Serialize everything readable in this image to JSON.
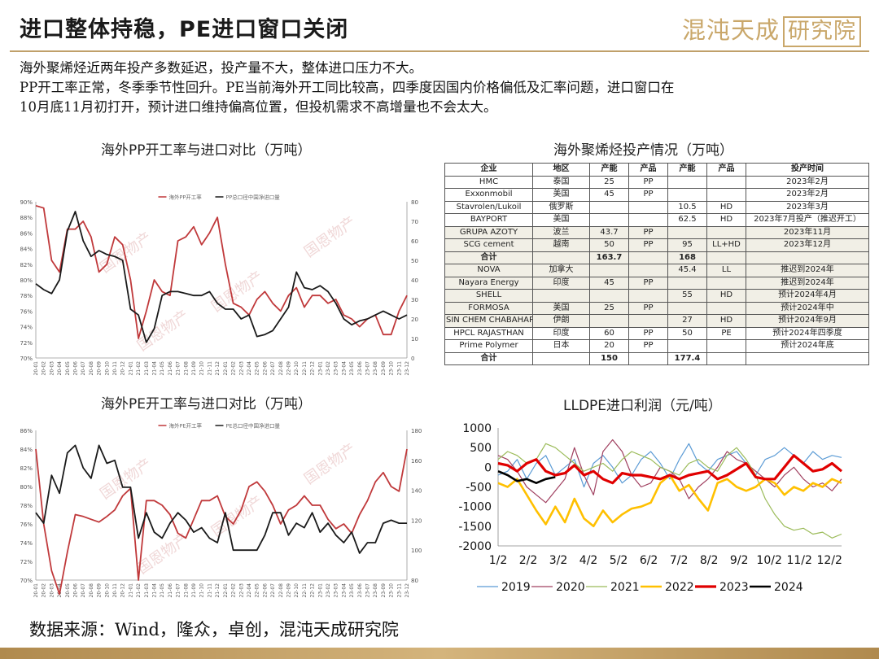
{
  "header": {
    "title": "进口整体持稳，PE进口窗口关闭",
    "logo_text": "混沌天成",
    "logo_box_text": "研究院"
  },
  "summary": {
    "line1": "海外聚烯烃近两年投产多数延迟，投产量不大，整体进口压力不大。",
    "line2": "PP开工率正常，冬季季节性回升。PE当前海外开工同比较高，四季度因国内价格偏低及汇率问题，进口窗口在",
    "line3": "10月底11月初打开，预计进口维持偏高位置，但投机需求不高增量也不会太大。"
  },
  "watermark": "国恩物产",
  "source": "数据来源：Wind，隆众，卓创，混沌天成研究院",
  "colors": {
    "red": "#c0393b",
    "black": "#1a1a1a",
    "gold": "#c9a76a"
  },
  "chart_data": [
    {
      "id": "pp",
      "type": "line",
      "title": "海外PP开工率与进口对比（万吨）",
      "legend": [
        "海外PP开工率",
        "PP总口径中国净进口量"
      ],
      "x_ticks": [
        "20-01",
        "20-02",
        "20-03",
        "20-04",
        "20-05",
        "20-06",
        "20-07",
        "20-08",
        "20-09",
        "20-10",
        "20-11",
        "20-12",
        "21-01",
        "21-02",
        "21-03",
        "21-04",
        "21-05",
        "21-06",
        "21-07",
        "21-08",
        "21-09",
        "21-10",
        "21-11",
        "21-12",
        "22-01",
        "22-02",
        "22-03",
        "22-04",
        "22-05",
        "22-06",
        "22-07",
        "22-08",
        "22-09",
        "22-10",
        "22-11",
        "22-12",
        "23-01",
        "23-02",
        "23-03",
        "23-04",
        "23-05",
        "23-06",
        "23-07",
        "23-08",
        "23-09",
        "23-10",
        "23-11",
        "23-12"
      ],
      "y_left": {
        "min": 70,
        "max": 90,
        "ticks": [
          "70%",
          "72%",
          "74%",
          "76%",
          "78%",
          "80%",
          "82%",
          "84%",
          "86%",
          "88%",
          "90%"
        ]
      },
      "y_right": {
        "min": 0,
        "max": 80,
        "ticks": [
          "0",
          "10",
          "20",
          "30",
          "40",
          "50",
          "60",
          "70",
          "80"
        ]
      },
      "series": [
        {
          "name": "海外PP开工率",
          "axis": "left",
          "values": [
            89.5,
            89.2,
            82.5,
            81.0,
            86.5,
            86.5,
            87.5,
            85.5,
            81.0,
            82.0,
            85.5,
            84.5,
            80.0,
            72.5,
            76.0,
            80.0,
            78.5,
            78.0,
            85.0,
            85.5,
            86.8,
            84.5,
            86.0,
            88.0,
            82.0,
            77.0,
            76.5,
            75.5,
            77.5,
            78.5,
            77.0,
            76.0,
            78.0,
            79.0,
            76.5,
            78.0,
            78.0,
            77.0,
            77.5,
            75.5,
            75.0,
            74.0,
            75.0,
            75.5,
            73.0,
            73.0,
            76.0,
            78.0
          ]
        },
        {
          "name": "PP总口径中国净进口量",
          "axis": "right",
          "values": [
            38,
            35,
            33,
            40,
            65,
            75,
            60,
            52,
            55,
            53,
            52,
            50,
            25,
            22,
            8,
            15,
            32,
            34,
            34,
            33,
            32,
            32,
            34,
            28,
            25,
            25,
            20,
            22,
            11,
            12,
            14,
            20,
            26,
            44,
            36,
            35,
            37,
            34,
            28,
            20,
            17,
            19,
            20,
            22,
            24,
            22,
            20,
            22
          ]
        }
      ]
    },
    {
      "id": "pe",
      "type": "line",
      "title": "海外PE开工率与进口对比（万吨）",
      "legend": [
        "海外PE开工率",
        "PE总口径中国净进口量"
      ],
      "x_ticks": [
        "20-01",
        "20-02",
        "20-03",
        "20-04",
        "20-05",
        "20-06",
        "20-07",
        "20-08",
        "20-09",
        "20-10",
        "20-11",
        "20-12",
        "21-01",
        "21-02",
        "21-03",
        "21-04",
        "21-05",
        "21-06",
        "21-07",
        "21-08",
        "21-09",
        "21-10",
        "21-11",
        "21-12",
        "22-01",
        "22-02",
        "22-03",
        "22-04",
        "22-05",
        "22-06",
        "22-07",
        "22-08",
        "22-09",
        "22-10",
        "22-11",
        "22-12",
        "23-01",
        "23-02",
        "23-03",
        "23-04",
        "23-05",
        "23-06",
        "23-07",
        "23-08",
        "23-09",
        "23-10",
        "23-11",
        "23-12"
      ],
      "y_left": {
        "min": 70,
        "max": 86,
        "ticks": [
          "70%",
          "72%",
          "74%",
          "76%",
          "78%",
          "80%",
          "82%",
          "84%",
          "86%"
        ]
      },
      "y_right": {
        "min": 80,
        "max": 180,
        "ticks": [
          "80",
          "100",
          "120",
          "140",
          "160",
          "180"
        ]
      },
      "series": [
        {
          "name": "海外PE开工率",
          "axis": "left",
          "values": [
            84.0,
            76.0,
            71.0,
            68.5,
            73.0,
            77.0,
            76.8,
            76.5,
            76.2,
            76.8,
            77.5,
            79.0,
            79.8,
            70.0,
            78.5,
            78.5,
            78.0,
            77.0,
            75.0,
            74.5,
            76.5,
            78.5,
            78.5,
            79.0,
            76.8,
            76.0,
            77.5,
            80.0,
            80.5,
            79.5,
            78.0,
            76.0,
            77.5,
            78.0,
            79.0,
            78.0,
            78.0,
            76.5,
            75.5,
            76.0,
            75.0,
            77.0,
            78.5,
            80.5,
            81.5,
            80.0,
            79.5,
            84.0
          ]
        },
        {
          "name": "PE总口径中国净进口量",
          "axis": "right",
          "values": [
            125,
            118,
            150,
            138,
            165,
            170,
            155,
            148,
            170,
            158,
            160,
            142,
            142,
            108,
            125,
            112,
            108,
            118,
            125,
            120,
            112,
            115,
            108,
            105,
            125,
            100,
            100,
            100,
            100,
            110,
            125,
            125,
            110,
            118,
            115,
            125,
            112,
            118,
            110,
            105,
            112,
            98,
            105,
            105,
            118,
            120,
            118,
            118
          ]
        }
      ]
    },
    {
      "id": "lldpe",
      "type": "line",
      "title": "LLDPE进口利润（元/吨）",
      "x_ticks": [
        "1/2",
        "2/2",
        "3/2",
        "4/2",
        "5/2",
        "6/2",
        "7/2",
        "8/2",
        "9/2",
        "10/2",
        "11/2",
        "12/2"
      ],
      "y": {
        "min": -2000,
        "max": 1000,
        "ticks": [
          "1000",
          "500",
          "0",
          "-500",
          "-1000",
          "-1500",
          "-2000"
        ]
      },
      "legend_position": "bottom",
      "series": [
        {
          "name": "2019",
          "color": "#5b9bd5",
          "width": 1.2,
          "values": [
            -200,
            -100,
            200,
            -300,
            100,
            300,
            -200,
            0,
            200,
            -500,
            100,
            300,
            0,
            -400,
            -200,
            200,
            400,
            100,
            -300,
            200,
            600,
            100,
            -100,
            200,
            300,
            400,
            100,
            -200,
            200,
            300,
            500,
            300,
            100,
            400,
            200,
            300,
            250
          ]
        },
        {
          "name": "2020",
          "color": "#a04060",
          "width": 1.2,
          "values": [
            300,
            200,
            -100,
            -500,
            -700,
            -900,
            -600,
            -300,
            500,
            -200,
            -700,
            400,
            700,
            400,
            -200,
            -500,
            -400,
            0,
            -100,
            -300,
            -800,
            -500,
            -300,
            0,
            400,
            200,
            100,
            -100,
            -300,
            -500,
            -200,
            0,
            -300,
            -500,
            -400,
            -600,
            -300
          ]
        },
        {
          "name": "2021",
          "color": "#9bbb59",
          "width": 1.2,
          "values": [
            200,
            400,
            300,
            100,
            200,
            600,
            500,
            300,
            100,
            -100,
            0,
            100,
            -100,
            200,
            400,
            300,
            200,
            0,
            -100,
            -200,
            100,
            200,
            0,
            -100,
            300,
            500,
            200,
            -200,
            -800,
            -1200,
            -1500,
            -1600,
            -1550,
            -1700,
            -1650,
            -1800,
            -1700
          ]
        },
        {
          "name": "2022",
          "color": "#ffc000",
          "width": 2.6,
          "values": [
            -400,
            -500,
            -300,
            -700,
            -1100,
            -1450,
            -1000,
            -1400,
            -800,
            -1300,
            -1500,
            -1100,
            -1400,
            -1200,
            -1050,
            -1000,
            -900,
            -400,
            -200,
            -600,
            -450,
            -800,
            -1100,
            -400,
            -300,
            -500,
            -600,
            -500,
            -300,
            -400,
            -700,
            -500,
            -600,
            -400,
            -500,
            -300,
            -400
          ]
        },
        {
          "name": "2023",
          "color": "#e00000",
          "width": 3.2,
          "values": [
            100,
            50,
            -100,
            100,
            200,
            -100,
            -200,
            -150,
            50,
            -200,
            -100,
            -300,
            -400,
            -150,
            -200,
            -200,
            -250,
            -300,
            -200,
            -300,
            -200,
            -150,
            -100,
            -300,
            -200,
            -50,
            100,
            -250,
            -300,
            -300,
            0,
            300,
            100,
            -100,
            -50,
            100,
            -100
          ]
        },
        {
          "name": "2024",
          "color": "#000000",
          "width": 2.6,
          "values": [
            -100,
            -200,
            -350,
            -300,
            -400,
            -300,
            -250
          ]
        }
      ]
    },
    {
      "id": "table",
      "type": "table",
      "title": "海外聚烯烃投产情况（万吨）",
      "columns": [
        "企业",
        "地区",
        "产能",
        "产品",
        "产能",
        "产品",
        "投产时间"
      ],
      "rows": [
        [
          "HMC",
          "泰国",
          "25",
          "PP",
          "",
          "",
          "2023年2月"
        ],
        [
          "Exxonmobil",
          "美国",
          "45",
          "PP",
          "",
          "",
          "2023年2月"
        ],
        [
          "Stavrolen/Lukoil",
          "俄罗斯",
          "",
          "",
          "10.5",
          "HD",
          "2023年3月"
        ],
        [
          "BAYPORT",
          "美国",
          "",
          "",
          "62.5",
          "HD",
          "2023年7月投产（推迟开工）"
        ],
        [
          "GRUPA AZOTY",
          "波兰",
          "43.7",
          "PP",
          "",
          "",
          "2023年11月"
        ],
        [
          "SCG cement",
          "越南",
          "50",
          "PP",
          "95",
          "LL+HD",
          "2023年12月"
        ],
        [
          "合计",
          "",
          "163.7",
          "",
          "168",
          "",
          ""
        ],
        [
          "NOVA",
          "加拿大",
          "",
          "",
          "45.4",
          "LL",
          "推迟到2024年"
        ],
        [
          "Nayara Energy",
          "印度",
          "45",
          "PP",
          "",
          "",
          "推迟到2024年"
        ],
        [
          "SHELL",
          "",
          "",
          "",
          "55",
          "HD",
          "预计2024年4月"
        ],
        [
          "FORMOSA",
          "美国",
          "25",
          "PP",
          "",
          "",
          "预计2024年中"
        ],
        [
          "SIN CHEM CHABAHAR",
          "伊朗",
          "",
          "",
          "27",
          "HD",
          "预计2024年9月"
        ],
        [
          "HPCL RAJASTHAN",
          "印度",
          "60",
          "PP",
          "50",
          "PE",
          "预计2024年四季度"
        ],
        [
          "Prime Polymer",
          "日本",
          "20",
          "PP",
          "",
          "",
          "预计2024年底"
        ],
        [
          "合计",
          "",
          "150",
          "",
          "177.4",
          "",
          ""
        ]
      ]
    }
  ]
}
